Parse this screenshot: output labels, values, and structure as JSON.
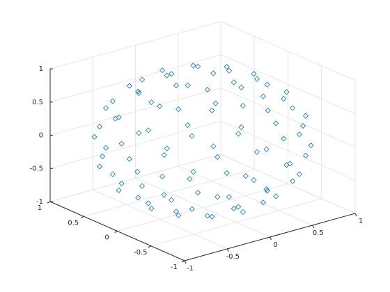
{
  "chart_data": {
    "type": "scatter3",
    "marker": "diamond",
    "color": "#0072bd",
    "grid": true,
    "x": [
      0.31,
      0.155,
      -0.155,
      -0.31,
      -0.155,
      0.155,
      0.6,
      0.52,
      0.3,
      0,
      -0.3,
      -0.52,
      -0.6,
      -0.52,
      -0.3,
      0,
      0.3,
      0.52,
      0.81,
      0.59,
      0.22,
      -0.22,
      -0.59,
      -0.81,
      -0.81,
      -0.59,
      -0.22,
      0.22,
      0.59,
      0.81,
      0.95,
      0.83,
      0.48,
      0,
      -0.48,
      -0.83,
      -0.95,
      -0.83,
      -0.48,
      0,
      0.48,
      0.83,
      0.97,
      0.71,
      0.26,
      -0.26,
      -0.71,
      -0.97,
      -0.97,
      -0.71,
      -0.26,
      0.26,
      0.71,
      0.97,
      0.95,
      0.83,
      0.48,
      0,
      -0.48,
      -0.83,
      -0.95,
      -0.83,
      -0.48,
      0,
      0.48,
      0.83,
      0.81,
      0.59,
      0.22,
      -0.22,
      -0.59,
      -0.81,
      -0.81,
      -0.59,
      -0.22,
      0.22,
      0.59,
      0.81,
      0.6,
      0.52,
      0.3,
      0,
      -0.3,
      -0.52,
      -0.6,
      -0.52,
      -0.3,
      0,
      0.3,
      0.52,
      0.31,
      0.155,
      -0.155,
      -0.31,
      -0.155,
      0.155
    ],
    "y": [
      0,
      0.268,
      0.268,
      0,
      -0.268,
      -0.268,
      0,
      0.3,
      0.52,
      0.6,
      0.52,
      0.3,
      0,
      -0.3,
      -0.52,
      -0.6,
      -0.52,
      -0.3,
      0.22,
      0.59,
      0.81,
      0.81,
      0.59,
      0.22,
      -0.22,
      -0.59,
      -0.81,
      -0.81,
      -0.59,
      -0.22,
      0,
      0.48,
      0.83,
      0.95,
      0.83,
      0.48,
      0,
      -0.48,
      -0.83,
      -0.95,
      -0.83,
      -0.48,
      0.26,
      0.71,
      0.97,
      0.97,
      0.71,
      0.26,
      -0.26,
      -0.71,
      -0.97,
      -0.97,
      -0.71,
      -0.26,
      0,
      0.48,
      0.83,
      0.95,
      0.83,
      0.48,
      0,
      -0.48,
      -0.83,
      -0.95,
      -0.83,
      -0.48,
      0.22,
      0.59,
      0.81,
      0.81,
      0.59,
      0.22,
      -0.22,
      -0.59,
      -0.81,
      -0.81,
      -0.59,
      -0.22,
      0,
      0.3,
      0.52,
      0.6,
      0.52,
      0.3,
      0,
      -0.3,
      -0.52,
      -0.6,
      -0.52,
      -0.3,
      0,
      0.268,
      0.268,
      0,
      -0.268,
      -0.268
    ],
    "z": [
      0.95,
      0.95,
      0.95,
      0.95,
      0.95,
      0.95,
      0.8,
      0.8,
      0.8,
      0.8,
      0.8,
      0.8,
      0.8,
      0.8,
      0.8,
      0.8,
      0.8,
      0.8,
      0.55,
      0.55,
      0.55,
      0.55,
      0.55,
      0.55,
      0.55,
      0.55,
      0.55,
      0.55,
      0.55,
      0.55,
      0.3,
      0.3,
      0.3,
      0.3,
      0.3,
      0.3,
      0.3,
      0.3,
      0.3,
      0.3,
      0.3,
      0.3,
      0,
      0,
      0,
      0,
      0,
      0,
      0,
      0,
      0,
      0,
      0,
      0,
      -0.3,
      -0.3,
      -0.3,
      -0.3,
      -0.3,
      -0.3,
      -0.3,
      -0.3,
      -0.3,
      -0.3,
      -0.3,
      -0.3,
      -0.55,
      -0.55,
      -0.55,
      -0.55,
      -0.55,
      -0.55,
      -0.55,
      -0.55,
      -0.55,
      -0.55,
      -0.55,
      -0.55,
      -0.8,
      -0.8,
      -0.8,
      -0.8,
      -0.8,
      -0.8,
      -0.8,
      -0.8,
      -0.8,
      -0.8,
      -0.8,
      -0.8,
      -0.95,
      -0.95,
      -0.95,
      -0.95,
      -0.95,
      -0.95
    ],
    "xlim": [
      -1,
      1
    ],
    "ylim": [
      -1,
      1
    ],
    "zlim": [
      -1,
      1
    ],
    "xticks": [
      -1,
      -0.5,
      0,
      0.5,
      1
    ],
    "yticks": [
      -1,
      -0.5,
      0,
      0.5,
      1
    ],
    "zticks": [
      -1,
      -0.5,
      0,
      0.5,
      1
    ]
  }
}
